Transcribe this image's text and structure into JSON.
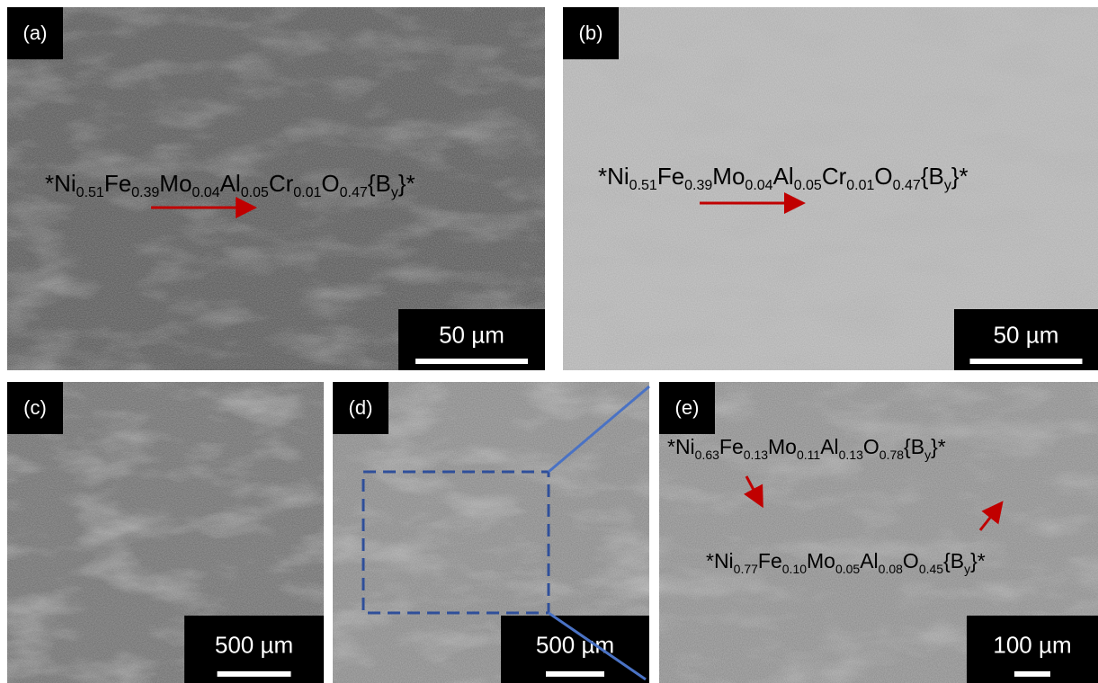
{
  "panels": [
    {
      "label": "(a)",
      "scale_bar": "50 µm",
      "annotations": [
        {
          "elements": [
            "*Ni",
            "Fe",
            "Mo",
            "Al",
            "Cr",
            "O",
            "{B"
          ],
          "subscripts": [
            "0.51",
            "0.39",
            "0.04",
            "0.05",
            "0.01",
            "0.47",
            "y"
          ],
          "tail": "}*"
        }
      ]
    },
    {
      "label": "(b)",
      "scale_bar": "50 µm",
      "annotations": [
        {
          "elements": [
            "*Ni",
            "Fe",
            "Mo",
            "Al",
            "Cr",
            "O",
            "{B"
          ],
          "subscripts": [
            "0.51",
            "0.39",
            "0.04",
            "0.05",
            "0.01",
            "0.47",
            "y"
          ],
          "tail": "}*"
        }
      ]
    },
    {
      "label": "(c)",
      "scale_bar": "500 µm",
      "annotations": []
    },
    {
      "label": "(d)",
      "scale_bar": "500 µm",
      "annotations": []
    },
    {
      "label": "(e)",
      "scale_bar": "100 µm",
      "annotations": [
        {
          "elements": [
            "*Ni",
            "Fe",
            "Mo",
            "Al",
            "O",
            "{B"
          ],
          "subscripts": [
            "0.63",
            "0.13",
            "0.11",
            "0.13",
            "0.78",
            "y"
          ],
          "tail": "}*"
        },
        {
          "elements": [
            "*Ni",
            "Fe",
            "Mo",
            "Al",
            "O",
            "{B"
          ],
          "subscripts": [
            "0.77",
            "0.10",
            "0.05",
            "0.08",
            "0.45",
            "y"
          ],
          "tail": "}*"
        }
      ]
    }
  ]
}
